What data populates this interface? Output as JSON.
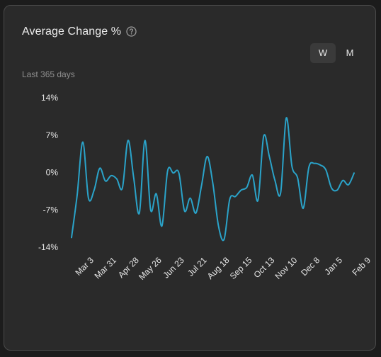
{
  "header": {
    "title": "Average Change %",
    "help_icon": "question-circle-icon",
    "subtitle": "Last 365 days"
  },
  "toggle": {
    "options": [
      "W",
      "M"
    ],
    "selected": "W"
  },
  "colors": {
    "line": "#2aa3c9",
    "background": "#2a2a2a",
    "text": "#e6e6e6"
  },
  "chart_data": {
    "type": "line",
    "title": "",
    "xlabel": "",
    "ylabel": "",
    "ylim": [
      -14,
      14
    ],
    "y_ticks": [
      14,
      7,
      0,
      -7,
      -14
    ],
    "y_tick_labels": [
      "14%",
      "7%",
      "0%",
      "-7%",
      "-14%"
    ],
    "x_tick_labels": [
      "Mar 3",
      "Mar 31",
      "Apr 28",
      "May 26",
      "Jun 23",
      "Jul 21",
      "Aug 18",
      "Sep 15",
      "Oct 13",
      "Nov 10",
      "Dec 8",
      "Jan 5",
      "Feb 9"
    ],
    "x_tick_index": [
      4,
      8,
      12,
      16,
      20,
      24,
      28,
      32,
      36,
      40,
      44,
      48,
      53
    ],
    "series": [
      {
        "values": [
          -12.2,
          -4.2,
          5.7,
          -4.8,
          -3.3,
          0.8,
          -1.6,
          -0.6,
          -1.2,
          -2.9,
          6.0,
          -1.0,
          -7.6,
          6.0,
          -7.0,
          -4.0,
          -10.0,
          0.3,
          -0.1,
          -0.1,
          -7.2,
          -4.8,
          -7.6,
          -2.5,
          3.0,
          -2.0,
          -10.0,
          -12.5,
          -5.0,
          -4.5,
          -3.3,
          -2.8,
          -0.5,
          -5.2,
          6.8,
          3.0,
          -1.5,
          -3.8,
          10.2,
          1.2,
          -1.0,
          -6.7,
          1.0,
          1.7,
          1.4,
          0.5,
          -2.9,
          -3.3,
          -1.5,
          -2.3,
          -0.1
        ]
      }
    ]
  }
}
